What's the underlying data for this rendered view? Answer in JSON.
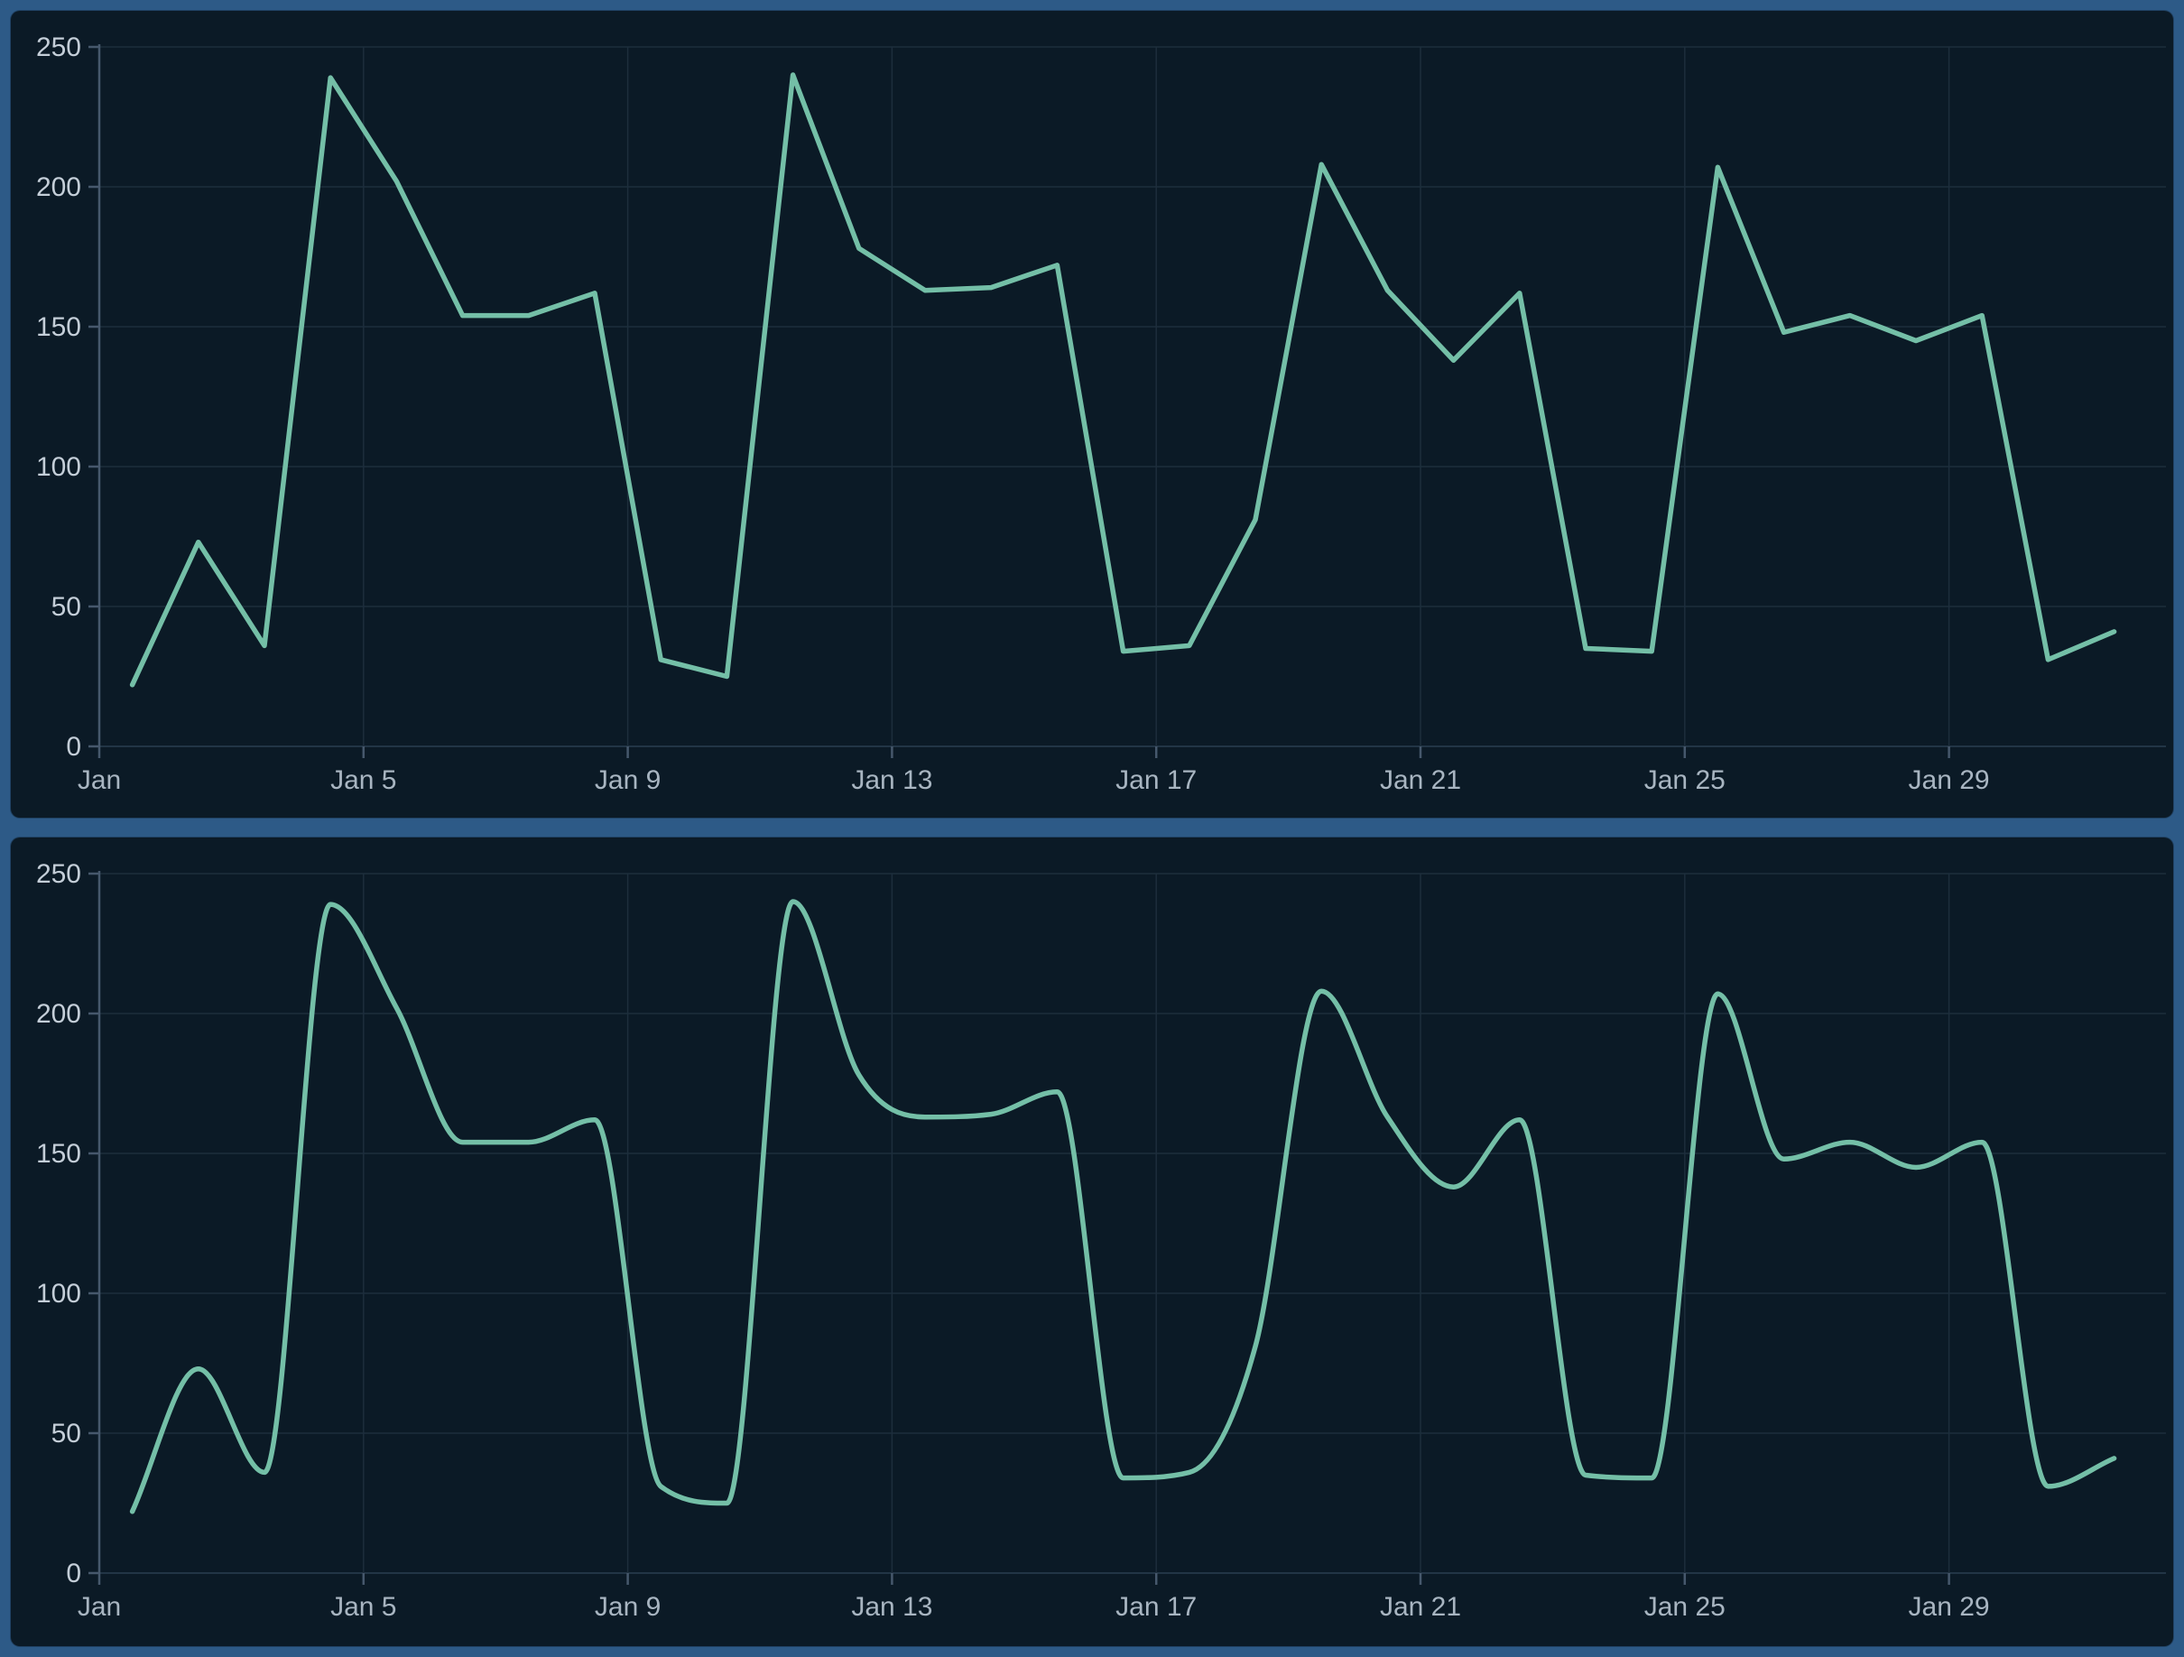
{
  "layout": {
    "page_bg": "#2d5a87",
    "panel_bg": "#0b1a26",
    "grid_color": "#1d2e3c",
    "zero_line_color": "#2b3e50",
    "axis_color": "#46586c",
    "y_label_color": "#c4ced8",
    "x_label_color": "#a8b5c1",
    "line_color": "#74bfa7"
  },
  "chart_data": [
    {
      "type": "line",
      "title": "",
      "interpolation": "linear",
      "x": [
        "Jan 1",
        "Jan 2",
        "Jan 3",
        "Jan 4",
        "Jan 5",
        "Jan 6",
        "Jan 7",
        "Jan 8",
        "Jan 9",
        "Jan 10",
        "Jan 11",
        "Jan 12",
        "Jan 13",
        "Jan 14",
        "Jan 15",
        "Jan 16",
        "Jan 17",
        "Jan 18",
        "Jan 19",
        "Jan 20",
        "Jan 21",
        "Jan 22",
        "Jan 23",
        "Jan 24",
        "Jan 25",
        "Jan 26",
        "Jan 27",
        "Jan 28",
        "Jan 29",
        "Jan 30",
        "Jan 31"
      ],
      "values": [
        22,
        73,
        36,
        239,
        202,
        154,
        154,
        162,
        31,
        25,
        240,
        178,
        163,
        164,
        172,
        34,
        36,
        81,
        208,
        163,
        138,
        162,
        35,
        34,
        207,
        148,
        154,
        145,
        154,
        31,
        41
      ],
      "x_tick_labels": [
        "Jan",
        "Jan 5",
        "Jan 9",
        "Jan 13",
        "Jan 17",
        "Jan 21",
        "Jan 25",
        "Jan 29"
      ],
      "x_tick_days": [
        1,
        5,
        9,
        13,
        17,
        21,
        25,
        29
      ],
      "y_ticks": [
        0,
        50,
        100,
        150,
        200,
        250
      ],
      "ylim": [
        0,
        250
      ],
      "grid": true,
      "legend": null,
      "xlabel": "",
      "ylabel": ""
    },
    {
      "type": "line",
      "title": "",
      "interpolation": "smooth",
      "x": [
        "Jan 1",
        "Jan 2",
        "Jan 3",
        "Jan 4",
        "Jan 5",
        "Jan 6",
        "Jan 7",
        "Jan 8",
        "Jan 9",
        "Jan 10",
        "Jan 11",
        "Jan 12",
        "Jan 13",
        "Jan 14",
        "Jan 15",
        "Jan 16",
        "Jan 17",
        "Jan 18",
        "Jan 19",
        "Jan 20",
        "Jan 21",
        "Jan 22",
        "Jan 23",
        "Jan 24",
        "Jan 25",
        "Jan 26",
        "Jan 27",
        "Jan 28",
        "Jan 29",
        "Jan 30",
        "Jan 31"
      ],
      "values": [
        22,
        73,
        36,
        239,
        202,
        154,
        154,
        162,
        31,
        25,
        240,
        178,
        163,
        164,
        172,
        34,
        36,
        81,
        208,
        163,
        138,
        162,
        35,
        34,
        207,
        148,
        154,
        145,
        154,
        31,
        41
      ],
      "x_tick_labels": [
        "Jan",
        "Jan 5",
        "Jan 9",
        "Jan 13",
        "Jan 17",
        "Jan 21",
        "Jan 25",
        "Jan 29"
      ],
      "x_tick_days": [
        1,
        5,
        9,
        13,
        17,
        21,
        25,
        29
      ],
      "y_ticks": [
        0,
        50,
        100,
        150,
        200,
        250
      ],
      "ylim": [
        0,
        250
      ],
      "grid": true,
      "legend": null,
      "xlabel": "",
      "ylabel": ""
    }
  ]
}
